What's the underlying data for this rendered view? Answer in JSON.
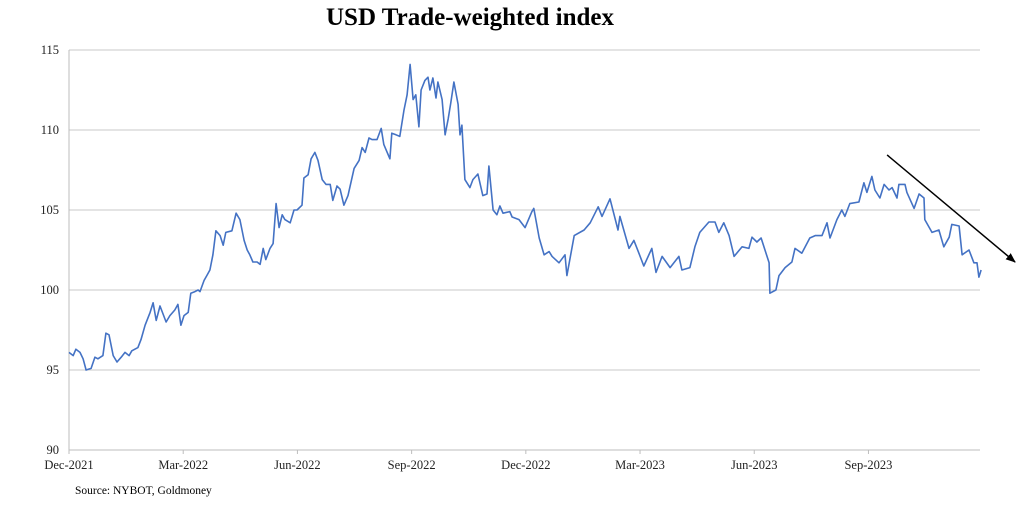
{
  "chart_data": {
    "type": "line",
    "title": "USD Trade-weighted index",
    "source": "Source: NYBOT, Goldmoney",
    "xlabel": "",
    "ylabel": "",
    "x_unit": "months since Dec-2021",
    "xlim": [
      0,
      23.93
    ],
    "ylim": [
      90,
      115
    ],
    "y_ticks": [
      90,
      95,
      100,
      105,
      110,
      115
    ],
    "x_ticks": [
      {
        "label": "Dec-2021",
        "x": 0
      },
      {
        "label": "Mar-2022",
        "x": 3
      },
      {
        "label": "Jun-2022",
        "x": 6
      },
      {
        "label": "Sep-2022",
        "x": 9
      },
      {
        "label": "Dec-2022",
        "x": 12
      },
      {
        "label": "Mar-2023",
        "x": 15
      },
      {
        "label": "Jun-2023",
        "x": 18
      },
      {
        "label": "Sep-2023",
        "x": 21
      }
    ],
    "grid": "horizontal",
    "legend": "none",
    "colors": {
      "line": "#4472C4",
      "grid": "#c8c8c8",
      "arrow": "#000000"
    },
    "series": [
      {
        "name": "USD Trade-weighted index",
        "x": [
          0,
          0.11,
          0.18,
          0.29,
          0.37,
          0.45,
          0.58,
          0.68,
          0.76,
          0.89,
          0.97,
          1.05,
          1.16,
          1.26,
          1.37,
          1.47,
          1.58,
          1.65,
          1.81,
          1.89,
          2.0,
          2.13,
          2.21,
          2.29,
          2.39,
          2.55,
          2.65,
          2.78,
          2.86,
          2.94,
          3.02,
          3.13,
          3.2,
          3.31,
          3.39,
          3.44,
          3.55,
          3.62,
          3.7,
          3.78,
          3.86,
          3.97,
          4.05,
          4.12,
          4.28,
          4.39,
          4.49,
          4.6,
          4.68,
          4.75,
          4.83,
          4.94,
          5.02,
          5.1,
          5.17,
          5.28,
          5.36,
          5.44,
          5.52,
          5.6,
          5.67,
          5.81,
          5.91,
          5.99,
          6.12,
          6.17,
          6.28,
          6.36,
          6.46,
          6.54,
          6.65,
          6.75,
          6.86,
          6.93,
          7.04,
          7.12,
          7.22,
          7.33,
          7.49,
          7.62,
          7.7,
          7.78,
          7.88,
          7.96,
          8.09,
          8.2,
          8.27,
          8.43,
          8.48,
          8.59,
          8.69,
          8.8,
          8.88,
          8.96,
          9.04,
          9.11,
          9.19,
          9.25,
          9.35,
          9.43,
          9.48,
          9.56,
          9.64,
          9.69,
          9.8,
          9.88,
          9.96,
          10.03,
          10.11,
          10.22,
          10.27,
          10.32,
          10.4,
          10.53,
          10.61,
          10.74,
          10.87,
          10.98,
          11.03,
          11.14,
          11.24,
          11.32,
          11.4,
          11.58,
          11.64,
          11.82,
          11.98,
          12.16,
          12.21,
          12.35,
          12.48,
          12.61,
          12.69,
          12.87,
          13.03,
          13.08,
          13.27,
          13.53,
          13.69,
          13.9,
          14.0,
          14.21,
          14.42,
          14.47,
          14.71,
          14.84,
          14.97,
          15.1,
          15.31,
          15.42,
          15.58,
          15.79,
          16.02,
          16.1,
          16.31,
          16.44,
          16.57,
          16.81,
          16.97,
          17.07,
          17.2,
          17.34,
          17.47,
          17.68,
          17.86,
          17.94,
          18.07,
          18.18,
          18.39,
          18.41,
          18.57,
          18.65,
          18.81,
          18.99,
          19.07,
          19.25,
          19.46,
          19.6,
          19.78,
          19.91,
          19.99,
          20.17,
          20.3,
          20.38,
          20.51,
          20.75,
          20.88,
          20.96,
          21.09,
          21.17,
          21.3,
          21.41,
          21.54,
          21.62,
          21.75,
          21.8,
          21.96,
          22.01,
          22.2,
          22.33,
          22.46,
          22.48,
          22.67,
          22.85,
          22.98,
          23.12,
          23.19,
          23.38,
          23.46,
          23.64,
          23.77,
          23.85,
          23.9,
          23.96
        ],
        "y": [
          96.1,
          95.9,
          96.3,
          96.1,
          95.7,
          95.0,
          95.1,
          95.8,
          95.7,
          95.9,
          97.3,
          97.2,
          95.9,
          95.5,
          95.8,
          96.1,
          95.9,
          96.2,
          96.4,
          96.9,
          97.8,
          98.6,
          99.2,
          98.1,
          99.0,
          98.0,
          98.4,
          98.75,
          99.1,
          97.8,
          98.4,
          98.6,
          99.8,
          99.9,
          100.0,
          99.9,
          100.6,
          100.9,
          101.25,
          102.2,
          103.7,
          103.4,
          102.8,
          103.6,
          103.7,
          104.8,
          104.4,
          103.1,
          102.5,
          102.2,
          101.75,
          101.75,
          101.6,
          102.6,
          101.9,
          102.6,
          102.9,
          105.4,
          103.9,
          104.7,
          104.4,
          104.2,
          105.0,
          105.0,
          105.3,
          107.0,
          107.2,
          108.2,
          108.6,
          108.1,
          106.9,
          106.6,
          106.6,
          105.6,
          106.5,
          106.3,
          105.3,
          105.9,
          107.6,
          108.1,
          108.9,
          108.6,
          109.5,
          109.4,
          109.4,
          110.1,
          109.1,
          108.2,
          109.8,
          109.7,
          109.6,
          111.25,
          112.2,
          114.1,
          111.9,
          112.2,
          110.2,
          112.5,
          113.1,
          113.3,
          112.5,
          113.25,
          112.0,
          113.0,
          111.9,
          109.7,
          110.7,
          111.7,
          113.0,
          111.6,
          109.7,
          110.3,
          106.9,
          106.4,
          106.9,
          107.25,
          105.9,
          106.0,
          107.75,
          105.0,
          104.7,
          105.25,
          104.8,
          104.9,
          104.56,
          104.4,
          103.9,
          104.9,
          105.1,
          103.25,
          102.2,
          102.4,
          102.1,
          101.7,
          102.2,
          100.9,
          103.4,
          103.75,
          104.2,
          105.2,
          104.6,
          105.7,
          103.75,
          104.6,
          102.6,
          103.1,
          102.3,
          101.5,
          102.6,
          101.1,
          102.1,
          101.4,
          102.1,
          101.25,
          101.4,
          102.7,
          103.6,
          104.25,
          104.25,
          103.6,
          104.2,
          103.4,
          102.1,
          102.7,
          102.6,
          103.3,
          103.0,
          103.25,
          101.7,
          99.8,
          100.0,
          100.9,
          101.4,
          101.75,
          102.6,
          102.3,
          103.25,
          103.4,
          103.4,
          104.2,
          103.25,
          104.4,
          105.0,
          104.6,
          105.4,
          105.5,
          106.7,
          106.1,
          107.1,
          106.25,
          105.75,
          106.6,
          106.25,
          106.4,
          105.75,
          106.6,
          106.6,
          106.1,
          105.1,
          106.0,
          105.75,
          104.4,
          103.6,
          103.75,
          102.7,
          103.3,
          104.1,
          104.0,
          102.2,
          102.5,
          101.7,
          101.7,
          100.8,
          101.25
        ]
      }
    ],
    "annotations": [
      {
        "type": "trend-arrow",
        "from": [
          21.49,
          108.44
        ],
        "to": [
          24.85,
          101.75
        ]
      }
    ]
  }
}
